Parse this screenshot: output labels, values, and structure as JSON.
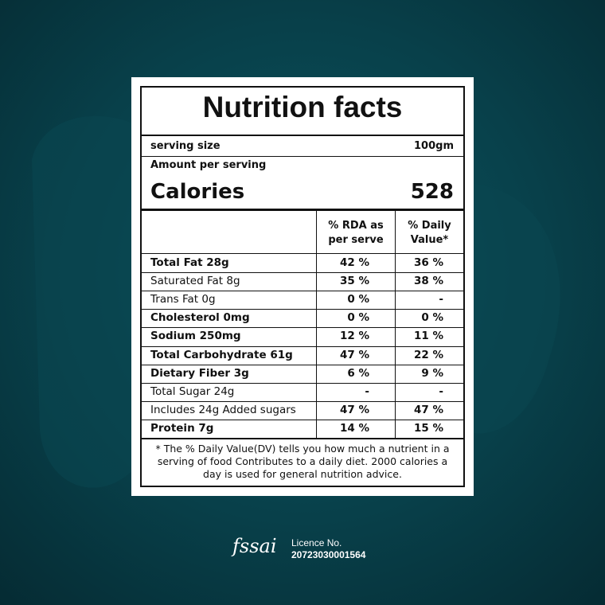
{
  "label": {
    "title": "Nutrition facts",
    "serving_size_label": "serving size",
    "serving_size": "100gm",
    "amount_per_serving": "Amount per serving",
    "calories_label": "Calories",
    "calories": "528",
    "headers": [
      "% RDA as",
      "per serve",
      "% Daily",
      "Value*"
    ],
    "rows": [
      {
        "name": "Total Fat 28g",
        "rda": "42 %",
        "dv": "36 %",
        "bold": true
      },
      {
        "name": "Saturated Fat 8g",
        "rda": "35 %",
        "dv": "38 %",
        "bold": false
      },
      {
        "name": "Trans Fat 0g",
        "rda": "0 %",
        "dv": "-",
        "bold": false
      },
      {
        "name": "Cholesterol 0mg",
        "rda": "0 %",
        "dv": "0 %",
        "bold": true
      },
      {
        "name": "Sodium 250mg",
        "rda": "12 %",
        "dv": "11 %",
        "bold": true
      },
      {
        "name": "Total Carbohydrate 61g",
        "rda": "47 %",
        "dv": "22 %",
        "bold": true
      },
      {
        "name": "Dietary Fiber 3g",
        "rda": "6 %",
        "dv": "9 %",
        "bold": true
      },
      {
        "name": "Total Sugar 24g",
        "rda": "-",
        "dv": "-",
        "bold": false
      },
      {
        "name": "Includes 24g Added sugars",
        "rda": "47 %",
        "dv": "47 %",
        "bold": false
      },
      {
        "name": "Protein 7g",
        "rda": "14 %",
        "dv": "15 %",
        "bold": true
      }
    ],
    "footnote": [
      "* The % Daily Value(DV) tells you how much a nutrient in a",
      "serving of food Contributes to a daily diet. 2000 calories a",
      "day is used for general nutrition advice."
    ]
  },
  "footer": {
    "logo": "fssai",
    "licence_label": "Licence No.",
    "licence_number": "20723030001564"
  }
}
